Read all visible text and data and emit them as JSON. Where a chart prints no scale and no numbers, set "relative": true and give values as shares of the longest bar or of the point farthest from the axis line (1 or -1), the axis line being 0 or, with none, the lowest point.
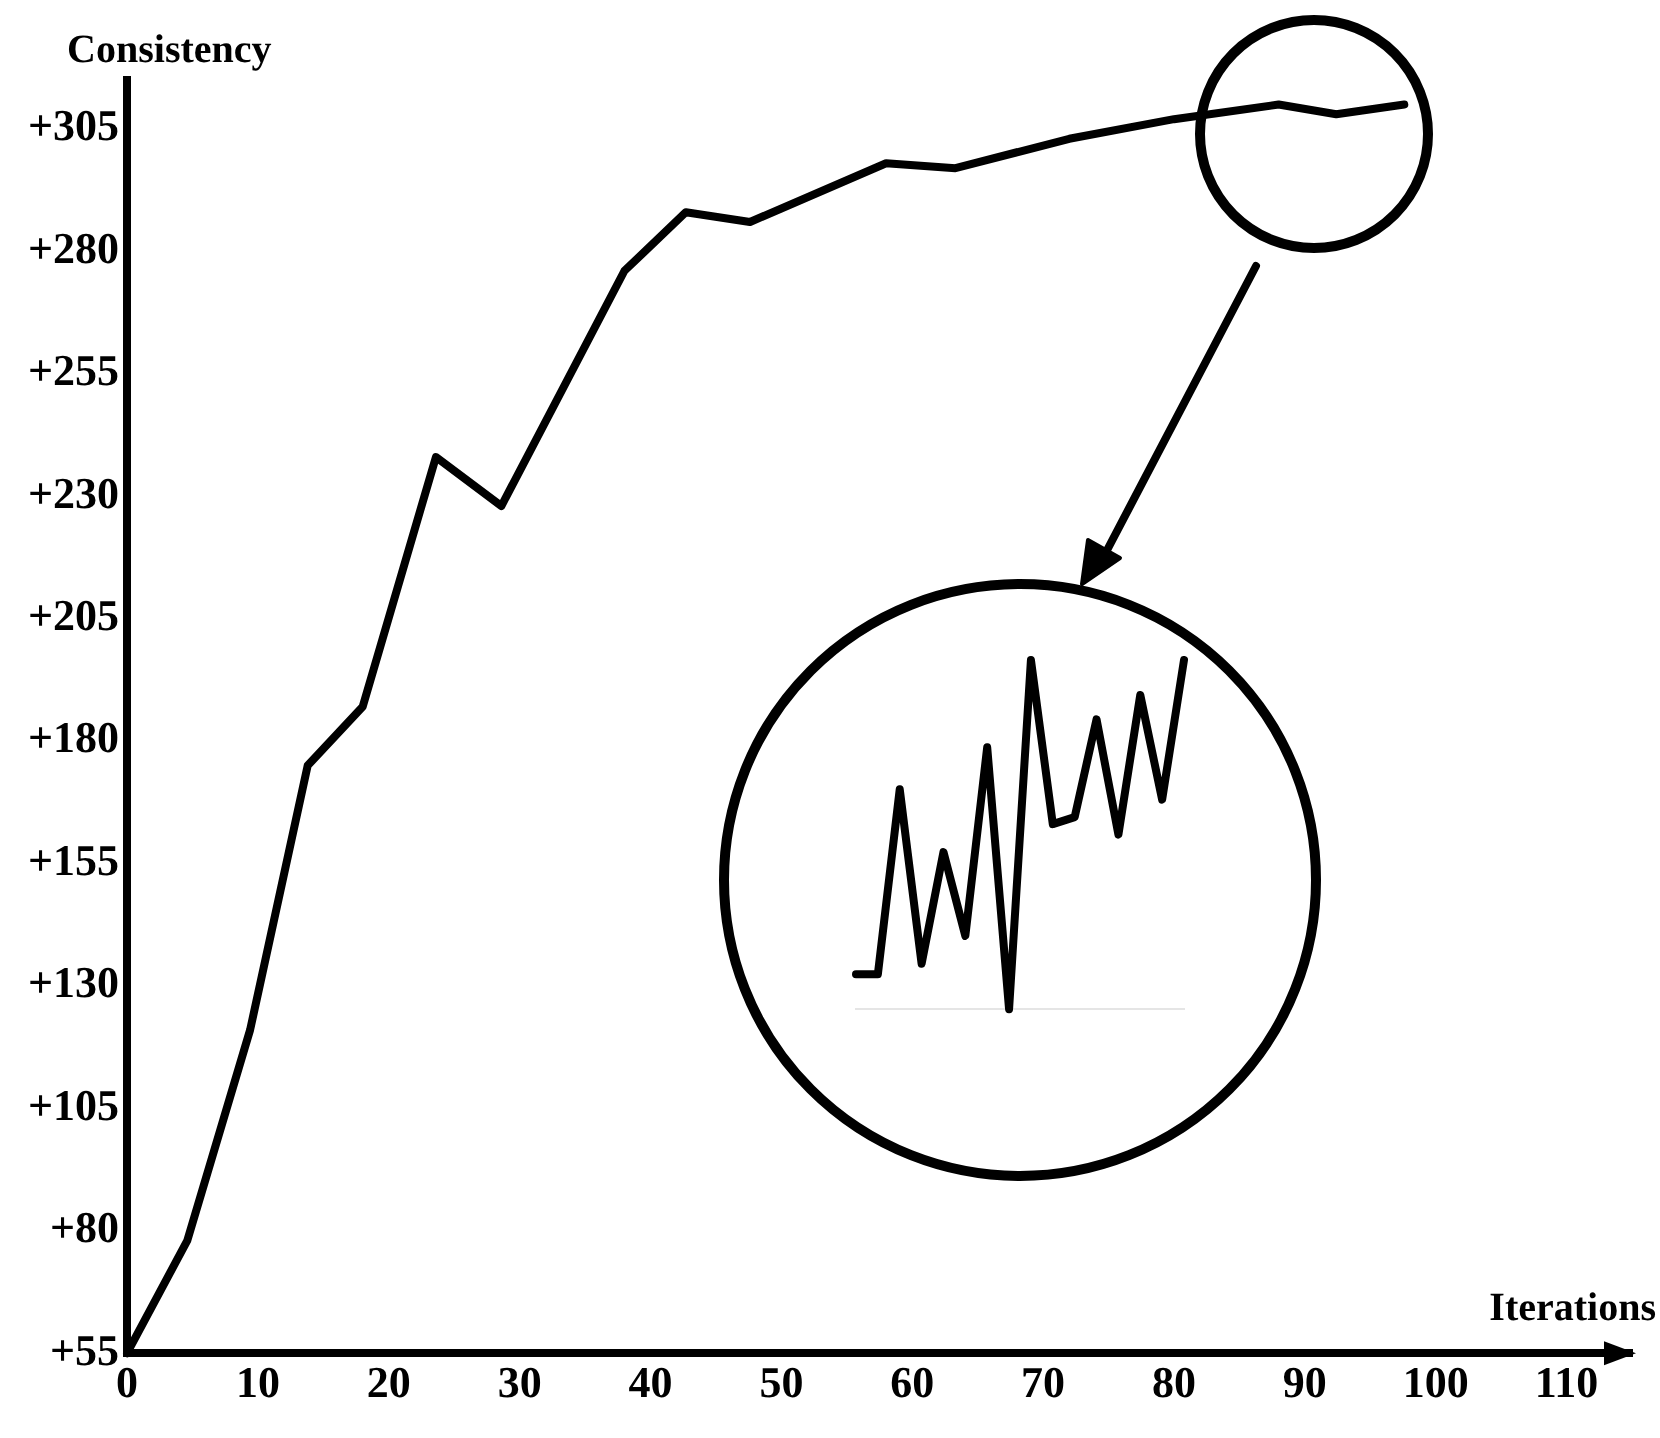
{
  "chart_data": [
    {
      "type": "line",
      "xlabel": "Iterations",
      "ylabel": "Consistency",
      "x": [
        0,
        4.6,
        9.4,
        13.8,
        18,
        23.6,
        28.6,
        38,
        42.7,
        47.6,
        58,
        63.3,
        72,
        80,
        88,
        92.4,
        97.6
      ],
      "values": [
        55,
        78,
        121,
        175,
        187,
        238,
        228,
        276,
        288,
        286,
        298,
        297,
        303,
        307,
        310,
        308,
        310
      ],
      "color": "#000000",
      "xlim": [
        0,
        115
      ],
      "xticks": [
        0,
        10,
        20,
        30,
        40,
        50,
        60,
        70,
        80,
        90,
        100,
        110
      ],
      "ylim": [
        55,
        315
      ],
      "yticks": [
        {
          "value": 55,
          "label": "+55"
        },
        {
          "value": 80,
          "label": "+80"
        },
        {
          "value": 105,
          "label": "+105"
        },
        {
          "value": 130,
          "label": "+130"
        },
        {
          "value": 155,
          "label": "+155"
        },
        {
          "value": 180,
          "label": "+180"
        },
        {
          "value": 205,
          "label": "+205"
        },
        {
          "value": 230,
          "label": "+230"
        },
        {
          "value": 255,
          "label": "+255"
        },
        {
          "value": 280,
          "label": "+280"
        },
        {
          "value": 305,
          "label": "+305"
        }
      ],
      "marker": "none",
      "line_style": "solid"
    },
    {
      "type": "line",
      "relative": true,
      "categories": [
        null,
        null,
        null,
        null,
        null,
        null,
        null,
        null,
        null,
        null,
        null,
        null,
        null,
        null,
        null,
        null
      ],
      "values": [
        0.1,
        0.1,
        0.63,
        0.13,
        0.45,
        0.21,
        0.75,
        0,
        1,
        0.53,
        0.55,
        0.83,
        0.5,
        0.9,
        0.6,
        1
      ],
      "color": "#000000",
      "marker": "none",
      "line_style": "solid"
    }
  ]
}
